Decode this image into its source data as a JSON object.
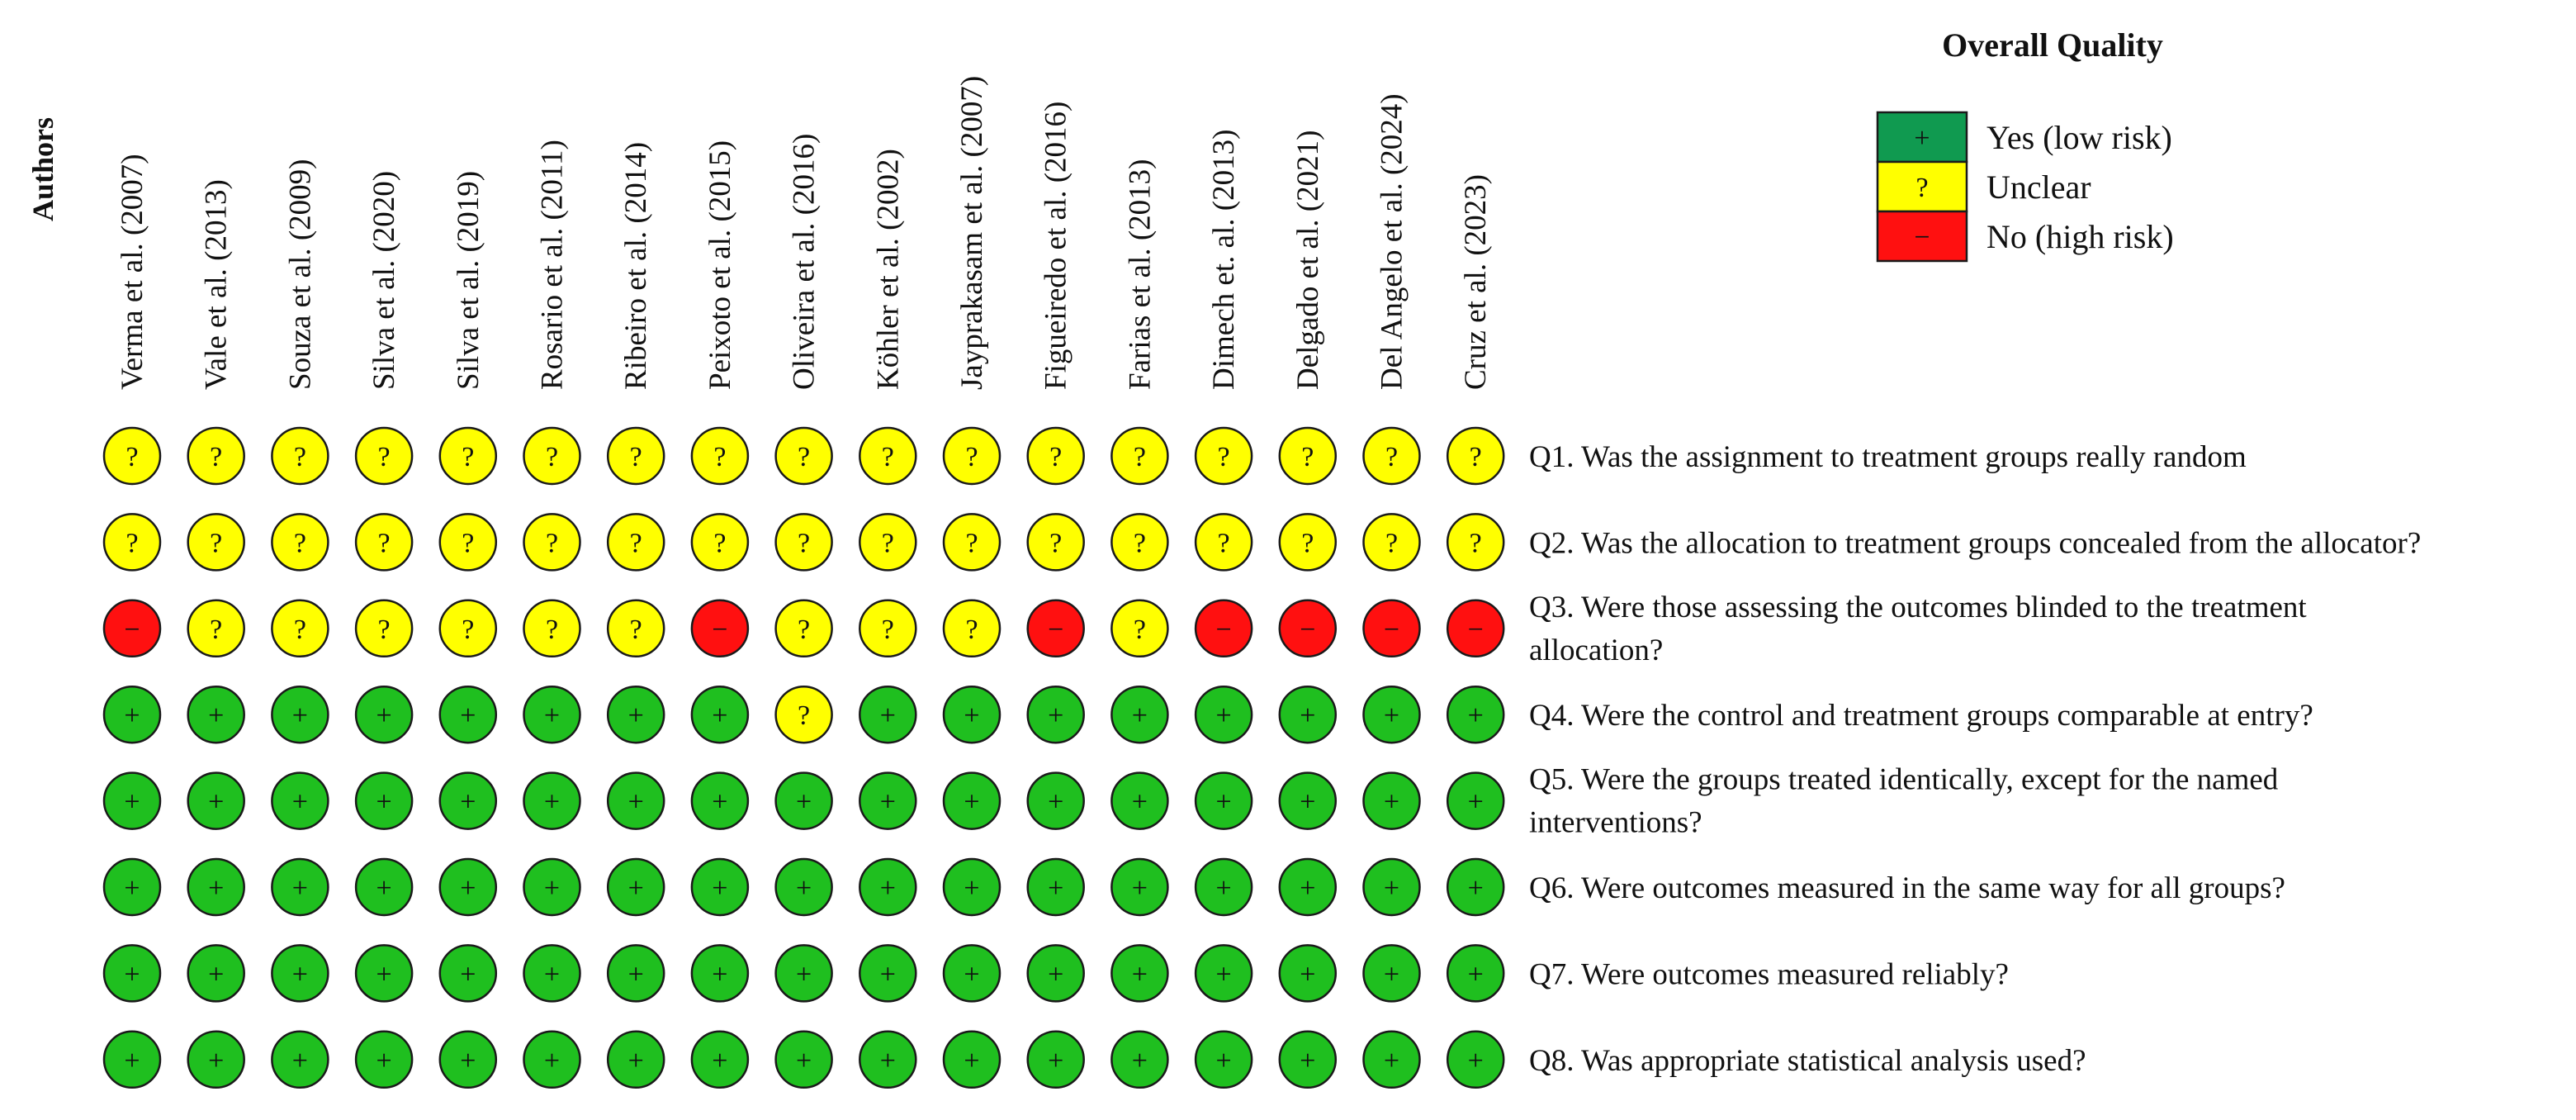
{
  "chart_data": {
    "type": "table",
    "title": "Overall Quality",
    "axis_label": "Authors",
    "authors": [
      "Verma et al. (2007)",
      "Vale et al. (2013)",
      "Souza et al. (2009)",
      "Silva et al. (2020)",
      "Silva et al. (2019)",
      "Rosario et al. (2011)",
      "Ribeiro et al. (2014)",
      "Peixoto et al. (2015)",
      "Oliveira et al. (2016)",
      "Köhler et al. (2002)",
      "Jayprakasam et al. (2007)",
      "Figueiredo et al. (2016)",
      "Farias et al. (2013)",
      "Dimech et. al. (2013)",
      "Delgado et al. (2021)",
      "Del Angelo et al. (2024)",
      "Cruz et al. (2023)"
    ],
    "questions": [
      [
        "Q1. Was the assignment to treatment groups really random"
      ],
      [
        "Q2. Was the allocation to treatment groups concealed from the allocator?"
      ],
      [
        "Q3. Were those assessing the outcomes blinded to the treatment",
        "allocation?"
      ],
      [
        "Q4. Were the control and treatment groups comparable at entry?"
      ],
      [
        "Q5. Were the groups treated identically, except for the named",
        "interventions?"
      ],
      [
        "Q6. Were outcomes measured in the same way for all groups?"
      ],
      [
        "Q7. Were outcomes measured reliably?"
      ],
      [
        "Q8. Was appropriate statistical analysis used?"
      ]
    ],
    "ratings": [
      [
        "unclear",
        "unclear",
        "unclear",
        "unclear",
        "unclear",
        "unclear",
        "unclear",
        "unclear",
        "unclear",
        "unclear",
        "unclear",
        "unclear",
        "unclear",
        "unclear",
        "unclear",
        "unclear",
        "unclear"
      ],
      [
        "unclear",
        "unclear",
        "unclear",
        "unclear",
        "unclear",
        "unclear",
        "unclear",
        "unclear",
        "unclear",
        "unclear",
        "unclear",
        "unclear",
        "unclear",
        "unclear",
        "unclear",
        "unclear",
        "unclear"
      ],
      [
        "high",
        "unclear",
        "unclear",
        "unclear",
        "unclear",
        "unclear",
        "unclear",
        "high",
        "unclear",
        "unclear",
        "unclear",
        "high",
        "unclear",
        "high",
        "high",
        "high",
        "high"
      ],
      [
        "low",
        "low",
        "low",
        "low",
        "low",
        "low",
        "low",
        "low",
        "unclear",
        "low",
        "low",
        "low",
        "low",
        "low",
        "low",
        "low",
        "low"
      ],
      [
        "low",
        "low",
        "low",
        "low",
        "low",
        "low",
        "low",
        "low",
        "low",
        "low",
        "low",
        "low",
        "low",
        "low",
        "low",
        "low",
        "low"
      ],
      [
        "low",
        "low",
        "low",
        "low",
        "low",
        "low",
        "low",
        "low",
        "low",
        "low",
        "low",
        "low",
        "low",
        "low",
        "low",
        "low",
        "low"
      ],
      [
        "low",
        "low",
        "low",
        "low",
        "low",
        "low",
        "low",
        "low",
        "low",
        "low",
        "low",
        "low",
        "low",
        "low",
        "low",
        "low",
        "low"
      ],
      [
        "low",
        "low",
        "low",
        "low",
        "low",
        "low",
        "low",
        "low",
        "low",
        "low",
        "low",
        "low",
        "low",
        "low",
        "low",
        "low",
        "low"
      ]
    ],
    "legend": [
      {
        "key": "low",
        "symbol": "+",
        "label": "Yes (low risk)"
      },
      {
        "key": "unclear",
        "symbol": "?",
        "label": "Unclear"
      },
      {
        "key": "high",
        "symbol": "−",
        "label": "No (high risk)"
      }
    ],
    "colors": {
      "low": "#1fbf1f",
      "unclear": "#ffff00",
      "high": "#ff1010",
      "legend_low": "#109a50",
      "legend_unclear": "#ffff00",
      "legend_high": "#ff1010"
    }
  }
}
